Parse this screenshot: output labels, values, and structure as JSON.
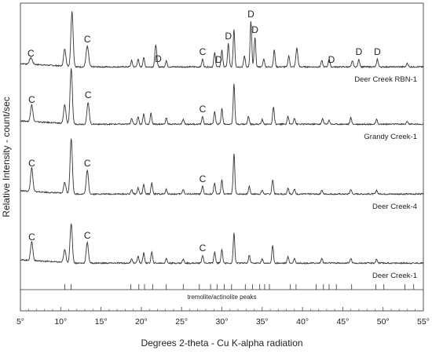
{
  "chart_data": {
    "type": "line",
    "xlabel": "Degrees 2-theta - Cu K-alpha radiation",
    "ylabel": "Relative Intensity - count/sec",
    "xlim": [
      5,
      55
    ],
    "x_ticks": [
      5,
      10,
      15,
      20,
      25,
      30,
      35,
      40,
      45,
      50,
      55
    ],
    "x_tick_labels": [
      "5°",
      "10°",
      "15°",
      "20°",
      "25°",
      "30°",
      "35°",
      "40°",
      "45°",
      "50°",
      "55°"
    ],
    "grid": false,
    "series": [
      {
        "name": "Deer Creek RBN-1",
        "peaks": [
          {
            "x": 6.3,
            "h": 8,
            "w": 0.18
          },
          {
            "x": 10.5,
            "h": 22,
            "w": 0.14
          },
          {
            "x": 11.4,
            "h": 70,
            "w": 0.14
          },
          {
            "x": 13.3,
            "h": 26,
            "w": 0.16
          },
          {
            "x": 18.8,
            "h": 8,
            "w": 0.1
          },
          {
            "x": 19.6,
            "h": 10,
            "w": 0.1
          },
          {
            "x": 20.3,
            "h": 12,
            "w": 0.1
          },
          {
            "x": 21.8,
            "h": 28,
            "w": 0.12
          },
          {
            "x": 23.1,
            "h": 8,
            "w": 0.1
          },
          {
            "x": 27.6,
            "h": 10,
            "w": 0.1
          },
          {
            "x": 29.1,
            "h": 18,
            "w": 0.1
          },
          {
            "x": 30.0,
            "h": 22,
            "w": 0.1
          },
          {
            "x": 30.8,
            "h": 30,
            "w": 0.1
          },
          {
            "x": 31.5,
            "h": 48,
            "w": 0.1
          },
          {
            "x": 32.8,
            "h": 14,
            "w": 0.1
          },
          {
            "x": 33.6,
            "h": 58,
            "w": 0.1
          },
          {
            "x": 34.1,
            "h": 38,
            "w": 0.1
          },
          {
            "x": 35.2,
            "h": 10,
            "w": 0.1
          },
          {
            "x": 36.5,
            "h": 22,
            "w": 0.1
          },
          {
            "x": 38.3,
            "h": 14,
            "w": 0.1
          },
          {
            "x": 39.3,
            "h": 24,
            "w": 0.12
          },
          {
            "x": 42.4,
            "h": 8,
            "w": 0.1
          },
          {
            "x": 43.3,
            "h": 10,
            "w": 0.1
          },
          {
            "x": 46.2,
            "h": 8,
            "w": 0.1
          },
          {
            "x": 47.0,
            "h": 10,
            "w": 0.1
          },
          {
            "x": 49.3,
            "h": 10,
            "w": 0.1
          },
          {
            "x": 53.0,
            "h": 5,
            "w": 0.1
          }
        ],
        "labels": [
          {
            "text": "C",
            "x": 6.3
          },
          {
            "text": "C",
            "x": 13.3
          },
          {
            "text": "D",
            "x": 22.1
          },
          {
            "text": "C",
            "x": 27.6
          },
          {
            "text": "D",
            "x": 29.6
          },
          {
            "text": "D",
            "x": 30.8
          },
          {
            "text": "D",
            "x": 33.6
          },
          {
            "text": "D",
            "x": 34.1
          },
          {
            "text": "D",
            "x": 43.6
          },
          {
            "text": "D",
            "x": 47.0
          },
          {
            "text": "D",
            "x": 49.3
          }
        ]
      },
      {
        "name": "Grandy Creek-1",
        "peaks": [
          {
            "x": 6.4,
            "h": 22,
            "w": 0.14
          },
          {
            "x": 10.5,
            "h": 24,
            "w": 0.14
          },
          {
            "x": 11.3,
            "h": 70,
            "w": 0.14
          },
          {
            "x": 13.4,
            "h": 28,
            "w": 0.14
          },
          {
            "x": 18.8,
            "h": 8,
            "w": 0.1
          },
          {
            "x": 19.6,
            "h": 10,
            "w": 0.1
          },
          {
            "x": 20.3,
            "h": 13,
            "w": 0.1
          },
          {
            "x": 21.2,
            "h": 14,
            "w": 0.1
          },
          {
            "x": 23.1,
            "h": 8,
            "w": 0.1
          },
          {
            "x": 25.2,
            "h": 6,
            "w": 0.1
          },
          {
            "x": 27.6,
            "h": 10,
            "w": 0.1
          },
          {
            "x": 29.1,
            "h": 16,
            "w": 0.1
          },
          {
            "x": 30.0,
            "h": 20,
            "w": 0.1
          },
          {
            "x": 31.5,
            "h": 52,
            "w": 0.1
          },
          {
            "x": 33.3,
            "h": 10,
            "w": 0.1
          },
          {
            "x": 35.0,
            "h": 6,
            "w": 0.1
          },
          {
            "x": 36.4,
            "h": 22,
            "w": 0.1
          },
          {
            "x": 38.2,
            "h": 10,
            "w": 0.1
          },
          {
            "x": 39.0,
            "h": 8,
            "w": 0.1
          },
          {
            "x": 42.5,
            "h": 7,
            "w": 0.1
          },
          {
            "x": 43.3,
            "h": 5,
            "w": 0.1
          },
          {
            "x": 46.0,
            "h": 8,
            "w": 0.1
          },
          {
            "x": 49.2,
            "h": 6,
            "w": 0.1
          },
          {
            "x": 53.0,
            "h": 4,
            "w": 0.1
          }
        ],
        "labels": [
          {
            "text": "C",
            "x": 6.4
          },
          {
            "text": "C",
            "x": 13.4
          },
          {
            "text": "C",
            "x": 27.6
          }
        ]
      },
      {
        "name": "Deer Creek-4",
        "peaks": [
          {
            "x": 6.4,
            "h": 30,
            "w": 0.14
          },
          {
            "x": 10.5,
            "h": 14,
            "w": 0.14
          },
          {
            "x": 11.3,
            "h": 70,
            "w": 0.14
          },
          {
            "x": 13.3,
            "h": 30,
            "w": 0.14
          },
          {
            "x": 18.8,
            "h": 6,
            "w": 0.1
          },
          {
            "x": 19.6,
            "h": 8,
            "w": 0.1
          },
          {
            "x": 20.3,
            "h": 12,
            "w": 0.1
          },
          {
            "x": 21.3,
            "h": 14,
            "w": 0.1
          },
          {
            "x": 23.1,
            "h": 6,
            "w": 0.1
          },
          {
            "x": 25.2,
            "h": 6,
            "w": 0.1
          },
          {
            "x": 27.6,
            "h": 10,
            "w": 0.1
          },
          {
            "x": 29.1,
            "h": 14,
            "w": 0.1
          },
          {
            "x": 30.0,
            "h": 18,
            "w": 0.1
          },
          {
            "x": 31.5,
            "h": 52,
            "w": 0.1
          },
          {
            "x": 33.4,
            "h": 10,
            "w": 0.1
          },
          {
            "x": 35.0,
            "h": 5,
            "w": 0.1
          },
          {
            "x": 36.3,
            "h": 18,
            "w": 0.1
          },
          {
            "x": 38.2,
            "h": 8,
            "w": 0.1
          },
          {
            "x": 39.0,
            "h": 6,
            "w": 0.1
          },
          {
            "x": 42.4,
            "h": 5,
            "w": 0.1
          },
          {
            "x": 46.0,
            "h": 6,
            "w": 0.1
          },
          {
            "x": 49.2,
            "h": 5,
            "w": 0.1
          }
        ],
        "labels": [
          {
            "text": "C",
            "x": 6.4
          },
          {
            "text": "C",
            "x": 13.3
          },
          {
            "text": "C",
            "x": 27.6
          }
        ]
      },
      {
        "name": "Deer Creek-1",
        "peaks": [
          {
            "x": 6.4,
            "h": 24,
            "w": 0.14
          },
          {
            "x": 10.5,
            "h": 16,
            "w": 0.14
          },
          {
            "x": 11.3,
            "h": 50,
            "w": 0.14
          },
          {
            "x": 13.3,
            "h": 26,
            "w": 0.14
          },
          {
            "x": 18.8,
            "h": 6,
            "w": 0.1
          },
          {
            "x": 19.6,
            "h": 9,
            "w": 0.1
          },
          {
            "x": 20.3,
            "h": 13,
            "w": 0.1
          },
          {
            "x": 21.3,
            "h": 14,
            "w": 0.1
          },
          {
            "x": 23.1,
            "h": 6,
            "w": 0.1
          },
          {
            "x": 25.2,
            "h": 5,
            "w": 0.1
          },
          {
            "x": 27.6,
            "h": 10,
            "w": 0.1
          },
          {
            "x": 29.1,
            "h": 14,
            "w": 0.1
          },
          {
            "x": 30.0,
            "h": 18,
            "w": 0.1
          },
          {
            "x": 31.5,
            "h": 38,
            "w": 0.1
          },
          {
            "x": 33.4,
            "h": 10,
            "w": 0.1
          },
          {
            "x": 35.0,
            "h": 5,
            "w": 0.1
          },
          {
            "x": 36.3,
            "h": 22,
            "w": 0.1
          },
          {
            "x": 38.2,
            "h": 8,
            "w": 0.1
          },
          {
            "x": 39.0,
            "h": 6,
            "w": 0.1
          },
          {
            "x": 42.4,
            "h": 6,
            "w": 0.1
          },
          {
            "x": 46.0,
            "h": 6,
            "w": 0.1
          },
          {
            "x": 49.2,
            "h": 5,
            "w": 0.1
          }
        ],
        "labels": [
          {
            "text": "C",
            "x": 6.4
          },
          {
            "text": "C",
            "x": 13.3
          },
          {
            "text": "C",
            "x": 27.6
          }
        ]
      }
    ],
    "reference": {
      "name": "tremolite/actinolite peaks",
      "positions": [
        10.5,
        11.3,
        18.7,
        19.7,
        20.4,
        21.4,
        23.1,
        25.2,
        27.2,
        28.6,
        29.4,
        30.3,
        31.2,
        32.9,
        33.8,
        34.7,
        35.3,
        35.9,
        38.5,
        39.2,
        41.7,
        42.6,
        43.3,
        44.2,
        46.1,
        49.1,
        50.1,
        52.7,
        53.8
      ]
    }
  }
}
